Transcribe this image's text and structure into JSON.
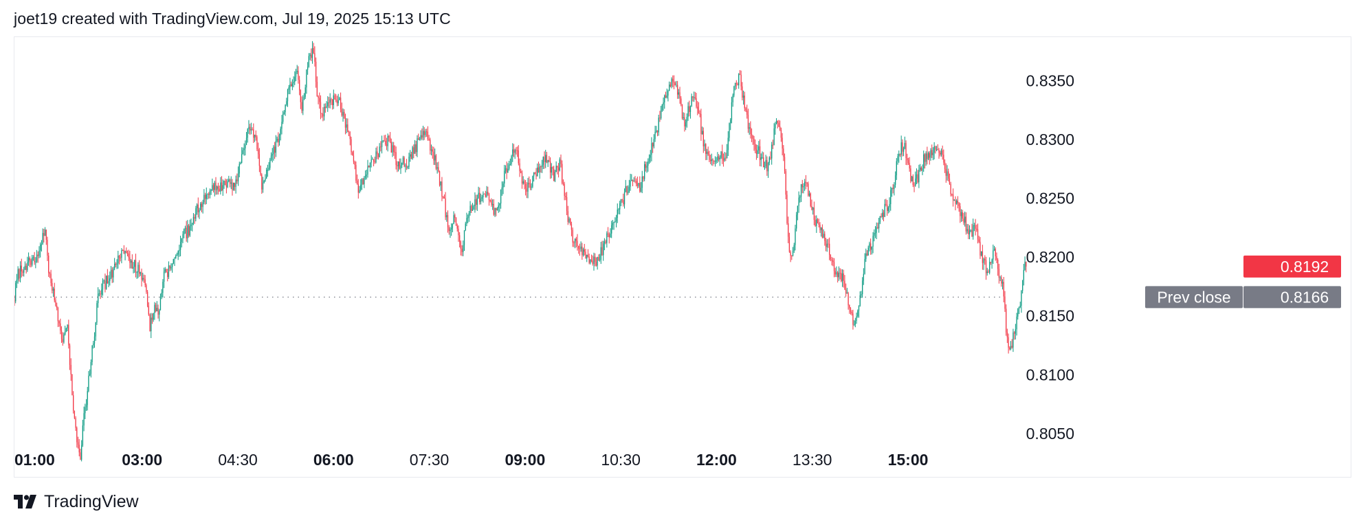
{
  "header": {
    "attribution": "joet19 created with TradingView.com, Jul 19, 2025 15:13 UTC"
  },
  "footer": {
    "brand": "TradingView",
    "logo_icon": "tradingview-logo-icon"
  },
  "colors": {
    "up": "#089981",
    "down": "#f23645",
    "axis_text": "#131722",
    "prev_close_bg": "#787b86",
    "last_price_bg": "#f23645",
    "border": "#e8e9ee"
  },
  "chart_data": {
    "type": "candlestick",
    "symbol_interval": "1-minute",
    "y_axis": {
      "position": "right",
      "range": [
        0.8012,
        0.8387
      ],
      "ticks": [
        "0.8350",
        "0.8300",
        "0.8250",
        "0.8200",
        "0.8150",
        "0.8100",
        "0.8050"
      ],
      "tick_values": [
        0.835,
        0.83,
        0.825,
        0.82,
        0.815,
        0.81,
        0.805
      ]
    },
    "x_axis": {
      "ticks": [
        {
          "label": "01:00",
          "major": true
        },
        {
          "label": "03:00",
          "major": true
        },
        {
          "label": "04:30",
          "major": false
        },
        {
          "label": "06:00",
          "major": true
        },
        {
          "label": "07:30",
          "major": false
        },
        {
          "label": "09:00",
          "major": true
        },
        {
          "label": "10:30",
          "major": false
        },
        {
          "label": "12:00",
          "major": true
        },
        {
          "label": "13:30",
          "major": false
        },
        {
          "label": "15:00",
          "major": true
        }
      ],
      "range_hours": [
        1.0,
        16.85
      ]
    },
    "price_path": [
      [
        1.0,
        0.8163
      ],
      [
        1.03,
        0.8184
      ],
      [
        1.2,
        0.8195
      ],
      [
        1.4,
        0.8205
      ],
      [
        1.48,
        0.8225
      ],
      [
        1.53,
        0.819
      ],
      [
        1.65,
        0.8162
      ],
      [
        1.75,
        0.8128
      ],
      [
        1.82,
        0.8145
      ],
      [
        1.9,
        0.8085
      ],
      [
        2.0,
        0.8035
      ],
      [
        2.03,
        0.8025
      ],
      [
        2.08,
        0.806
      ],
      [
        2.15,
        0.809
      ],
      [
        2.25,
        0.8135
      ],
      [
        2.32,
        0.817
      ],
      [
        2.45,
        0.818
      ],
      [
        2.6,
        0.8195
      ],
      [
        2.7,
        0.821
      ],
      [
        2.85,
        0.8195
      ],
      [
        3.05,
        0.818
      ],
      [
        3.12,
        0.814
      ],
      [
        3.2,
        0.8155
      ],
      [
        3.25,
        0.815
      ],
      [
        3.35,
        0.8185
      ],
      [
        3.5,
        0.8195
      ],
      [
        3.6,
        0.8215
      ],
      [
        3.75,
        0.8225
      ],
      [
        3.9,
        0.8245
      ],
      [
        4.05,
        0.8255
      ],
      [
        4.2,
        0.826
      ],
      [
        4.35,
        0.8265
      ],
      [
        4.45,
        0.826
      ],
      [
        4.55,
        0.8285
      ],
      [
        4.7,
        0.8315
      ],
      [
        4.8,
        0.8295
      ],
      [
        4.88,
        0.826
      ],
      [
        5.0,
        0.828
      ],
      [
        5.15,
        0.8305
      ],
      [
        5.3,
        0.8345
      ],
      [
        5.45,
        0.8355
      ],
      [
        5.5,
        0.8325
      ],
      [
        5.6,
        0.8365
      ],
      [
        5.68,
        0.838
      ],
      [
        5.72,
        0.835
      ],
      [
        5.8,
        0.832
      ],
      [
        5.95,
        0.8335
      ],
      [
        6.1,
        0.833
      ],
      [
        6.2,
        0.831
      ],
      [
        6.3,
        0.8285
      ],
      [
        6.4,
        0.8255
      ],
      [
        6.55,
        0.8275
      ],
      [
        6.7,
        0.829
      ],
      [
        6.85,
        0.83
      ],
      [
        7.0,
        0.828
      ],
      [
        7.15,
        0.828
      ],
      [
        7.3,
        0.8295
      ],
      [
        7.45,
        0.8305
      ],
      [
        7.6,
        0.828
      ],
      [
        7.7,
        0.8255
      ],
      [
        7.8,
        0.8225
      ],
      [
        7.9,
        0.8235
      ],
      [
        8.0,
        0.8205
      ],
      [
        8.1,
        0.8235
      ],
      [
        8.25,
        0.825
      ],
      [
        8.4,
        0.8255
      ],
      [
        8.55,
        0.8235
      ],
      [
        8.7,
        0.8275
      ],
      [
        8.85,
        0.8295
      ],
      [
        9.0,
        0.8255
      ],
      [
        9.15,
        0.827
      ],
      [
        9.3,
        0.8285
      ],
      [
        9.45,
        0.827
      ],
      [
        9.55,
        0.828
      ],
      [
        9.65,
        0.824
      ],
      [
        9.75,
        0.8215
      ],
      [
        9.85,
        0.8205
      ],
      [
        10.0,
        0.82
      ],
      [
        10.1,
        0.8195
      ],
      [
        10.2,
        0.8205
      ],
      [
        10.35,
        0.8225
      ],
      [
        10.5,
        0.8245
      ],
      [
        10.65,
        0.8265
      ],
      [
        10.8,
        0.826
      ],
      [
        10.95,
        0.829
      ],
      [
        11.05,
        0.8305
      ],
      [
        11.2,
        0.8335
      ],
      [
        11.3,
        0.835
      ],
      [
        11.4,
        0.834
      ],
      [
        11.5,
        0.831
      ],
      [
        11.6,
        0.8335
      ],
      [
        11.7,
        0.833
      ],
      [
        11.8,
        0.8295
      ],
      [
        11.95,
        0.828
      ],
      [
        12.05,
        0.829
      ],
      [
        12.15,
        0.8285
      ],
      [
        12.25,
        0.8335
      ],
      [
        12.35,
        0.8355
      ],
      [
        12.45,
        0.8325
      ],
      [
        12.55,
        0.83
      ],
      [
        12.65,
        0.829
      ],
      [
        12.8,
        0.8275
      ],
      [
        12.95,
        0.832
      ],
      [
        13.05,
        0.8285
      ],
      [
        13.12,
        0.8215
      ],
      [
        13.18,
        0.8195
      ],
      [
        13.3,
        0.8255
      ],
      [
        13.4,
        0.8265
      ],
      [
        13.55,
        0.823
      ],
      [
        13.7,
        0.8215
      ],
      [
        13.85,
        0.819
      ],
      [
        13.95,
        0.8185
      ],
      [
        14.05,
        0.8165
      ],
      [
        14.15,
        0.8145
      ],
      [
        14.25,
        0.8165
      ],
      [
        14.35,
        0.8205
      ],
      [
        14.45,
        0.8215
      ],
      [
        14.6,
        0.8235
      ],
      [
        14.75,
        0.8255
      ],
      [
        14.85,
        0.829
      ],
      [
        14.95,
        0.8295
      ],
      [
        15.05,
        0.8265
      ],
      [
        15.15,
        0.8265
      ],
      [
        15.25,
        0.8285
      ],
      [
        15.35,
        0.829
      ],
      [
        15.45,
        0.8295
      ],
      [
        15.55,
        0.8285
      ],
      [
        15.65,
        0.826
      ],
      [
        15.75,
        0.8245
      ],
      [
        15.85,
        0.8235
      ],
      [
        15.95,
        0.822
      ],
      [
        16.05,
        0.8225
      ],
      [
        16.15,
        0.82
      ],
      [
        16.25,
        0.8185
      ],
      [
        16.35,
        0.8205
      ],
      [
        16.42,
        0.8185
      ],
      [
        16.48,
        0.8175
      ],
      [
        16.55,
        0.813
      ],
      [
        16.6,
        0.812
      ],
      [
        16.65,
        0.8135
      ],
      [
        16.75,
        0.816
      ],
      [
        16.8,
        0.8185
      ],
      [
        16.85,
        0.8196
      ]
    ],
    "prev_close": {
      "label": "Prev close",
      "value": "0.8166",
      "y": 0.8166
    },
    "last_price": {
      "value": "0.8192",
      "y": 0.8192
    },
    "bar_count": 860,
    "grid": false,
    "legend": "none",
    "title": ""
  }
}
